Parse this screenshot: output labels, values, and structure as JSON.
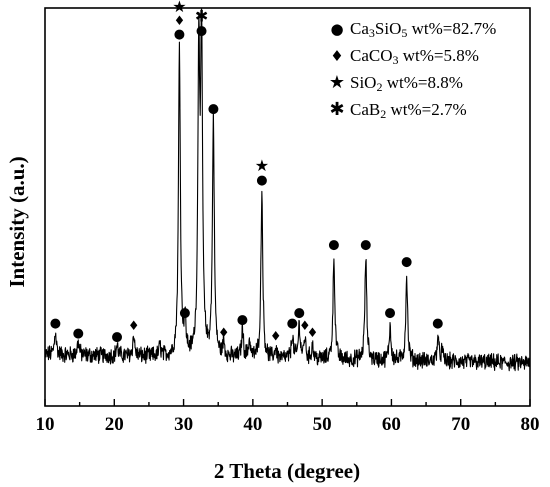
{
  "chart_data": {
    "type": "line",
    "xlabel": "2 Theta (degree)",
    "ylabel": "Intensity (a.u.)",
    "xlim": [
      10,
      80
    ],
    "xticks": [
      "10",
      "20",
      "30",
      "40",
      "50",
      "60",
      "70",
      "80"
    ],
    "y_ticks_shown": false,
    "y_range": [
      0,
      100
    ],
    "series": [
      {
        "peaks": [
          {
            "x": 11.5,
            "h": 7
          },
          {
            "x": 14.8,
            "h": 4
          },
          {
            "x": 20.4,
            "h": 3
          },
          {
            "x": 22.8,
            "h": 6
          },
          {
            "x": 26.6,
            "h": 3
          },
          {
            "x": 29.4,
            "h": 92
          },
          {
            "x": 30.2,
            "h": 10
          },
          {
            "x": 32.2,
            "h": 89
          },
          {
            "x": 32.6,
            "h": 93
          },
          {
            "x": 34.3,
            "h": 70
          },
          {
            "x": 35.8,
            "h": 4
          },
          {
            "x": 38.5,
            "h": 8
          },
          {
            "x": 39.5,
            "h": 5
          },
          {
            "x": 41.3,
            "h": 49
          },
          {
            "x": 43.3,
            "h": 3
          },
          {
            "x": 45.7,
            "h": 7
          },
          {
            "x": 46.7,
            "h": 10
          },
          {
            "x": 47.5,
            "h": 6
          },
          {
            "x": 48.6,
            "h": 4
          },
          {
            "x": 51.7,
            "h": 30
          },
          {
            "x": 56.3,
            "h": 30
          },
          {
            "x": 59.8,
            "h": 10
          },
          {
            "x": 62.2,
            "h": 25
          },
          {
            "x": 66.7,
            "h": 7
          },
          {
            "x": 67.3,
            "h": 3
          }
        ]
      }
    ],
    "legend": {
      "placement": "top-right",
      "entries": [
        {
          "symbol": "●",
          "name": "Ca",
          "sub1": "3",
          "mid": "SiO",
          "sub2": "5",
          "rest": " wt%=82.7%"
        },
        {
          "symbol": "♦",
          "name": "CaCO",
          "sub1": "3",
          "mid": "",
          "sub2": "",
          "rest": " wt%=5.8%"
        },
        {
          "symbol": "★",
          "name": "SiO",
          "sub1": "2",
          "mid": "",
          "sub2": "",
          "rest": " wt%=8.8%"
        },
        {
          "symbol": "✱",
          "name": "CaB",
          "sub1": "2",
          "mid": "",
          "sub2": "",
          "rest": " wt%=2.7%"
        }
      ]
    },
    "annotations": [
      {
        "x": 11.5,
        "symbols": [
          "●"
        ]
      },
      {
        "x": 14.8,
        "symbols": [
          "●"
        ]
      },
      {
        "x": 20.4,
        "symbols": [
          "●"
        ]
      },
      {
        "x": 22.8,
        "symbols": [
          "♦"
        ]
      },
      {
        "x": 29.4,
        "symbols": [
          "●",
          "♦",
          "★"
        ]
      },
      {
        "x": 30.2,
        "symbols": [
          "●"
        ]
      },
      {
        "x": 32.6,
        "symbols": [
          "●",
          "✱"
        ]
      },
      {
        "x": 34.3,
        "symbols": [
          "●"
        ]
      },
      {
        "x": 35.8,
        "symbols": [
          "♦"
        ]
      },
      {
        "x": 38.5,
        "symbols": [
          "●"
        ]
      },
      {
        "x": 41.3,
        "symbols": [
          "●",
          "★"
        ]
      },
      {
        "x": 43.3,
        "symbols": [
          "♦"
        ]
      },
      {
        "x": 45.7,
        "symbols": [
          "●"
        ]
      },
      {
        "x": 46.7,
        "symbols": [
          "●"
        ]
      },
      {
        "x": 47.5,
        "symbols": [
          "♦"
        ]
      },
      {
        "x": 48.6,
        "symbols": [
          "♦"
        ]
      },
      {
        "x": 51.7,
        "symbols": [
          "●"
        ]
      },
      {
        "x": 56.3,
        "symbols": [
          "●"
        ]
      },
      {
        "x": 59.8,
        "symbols": [
          "●"
        ]
      },
      {
        "x": 62.2,
        "symbols": [
          "●"
        ]
      },
      {
        "x": 66.7,
        "symbols": [
          "●"
        ]
      }
    ]
  }
}
